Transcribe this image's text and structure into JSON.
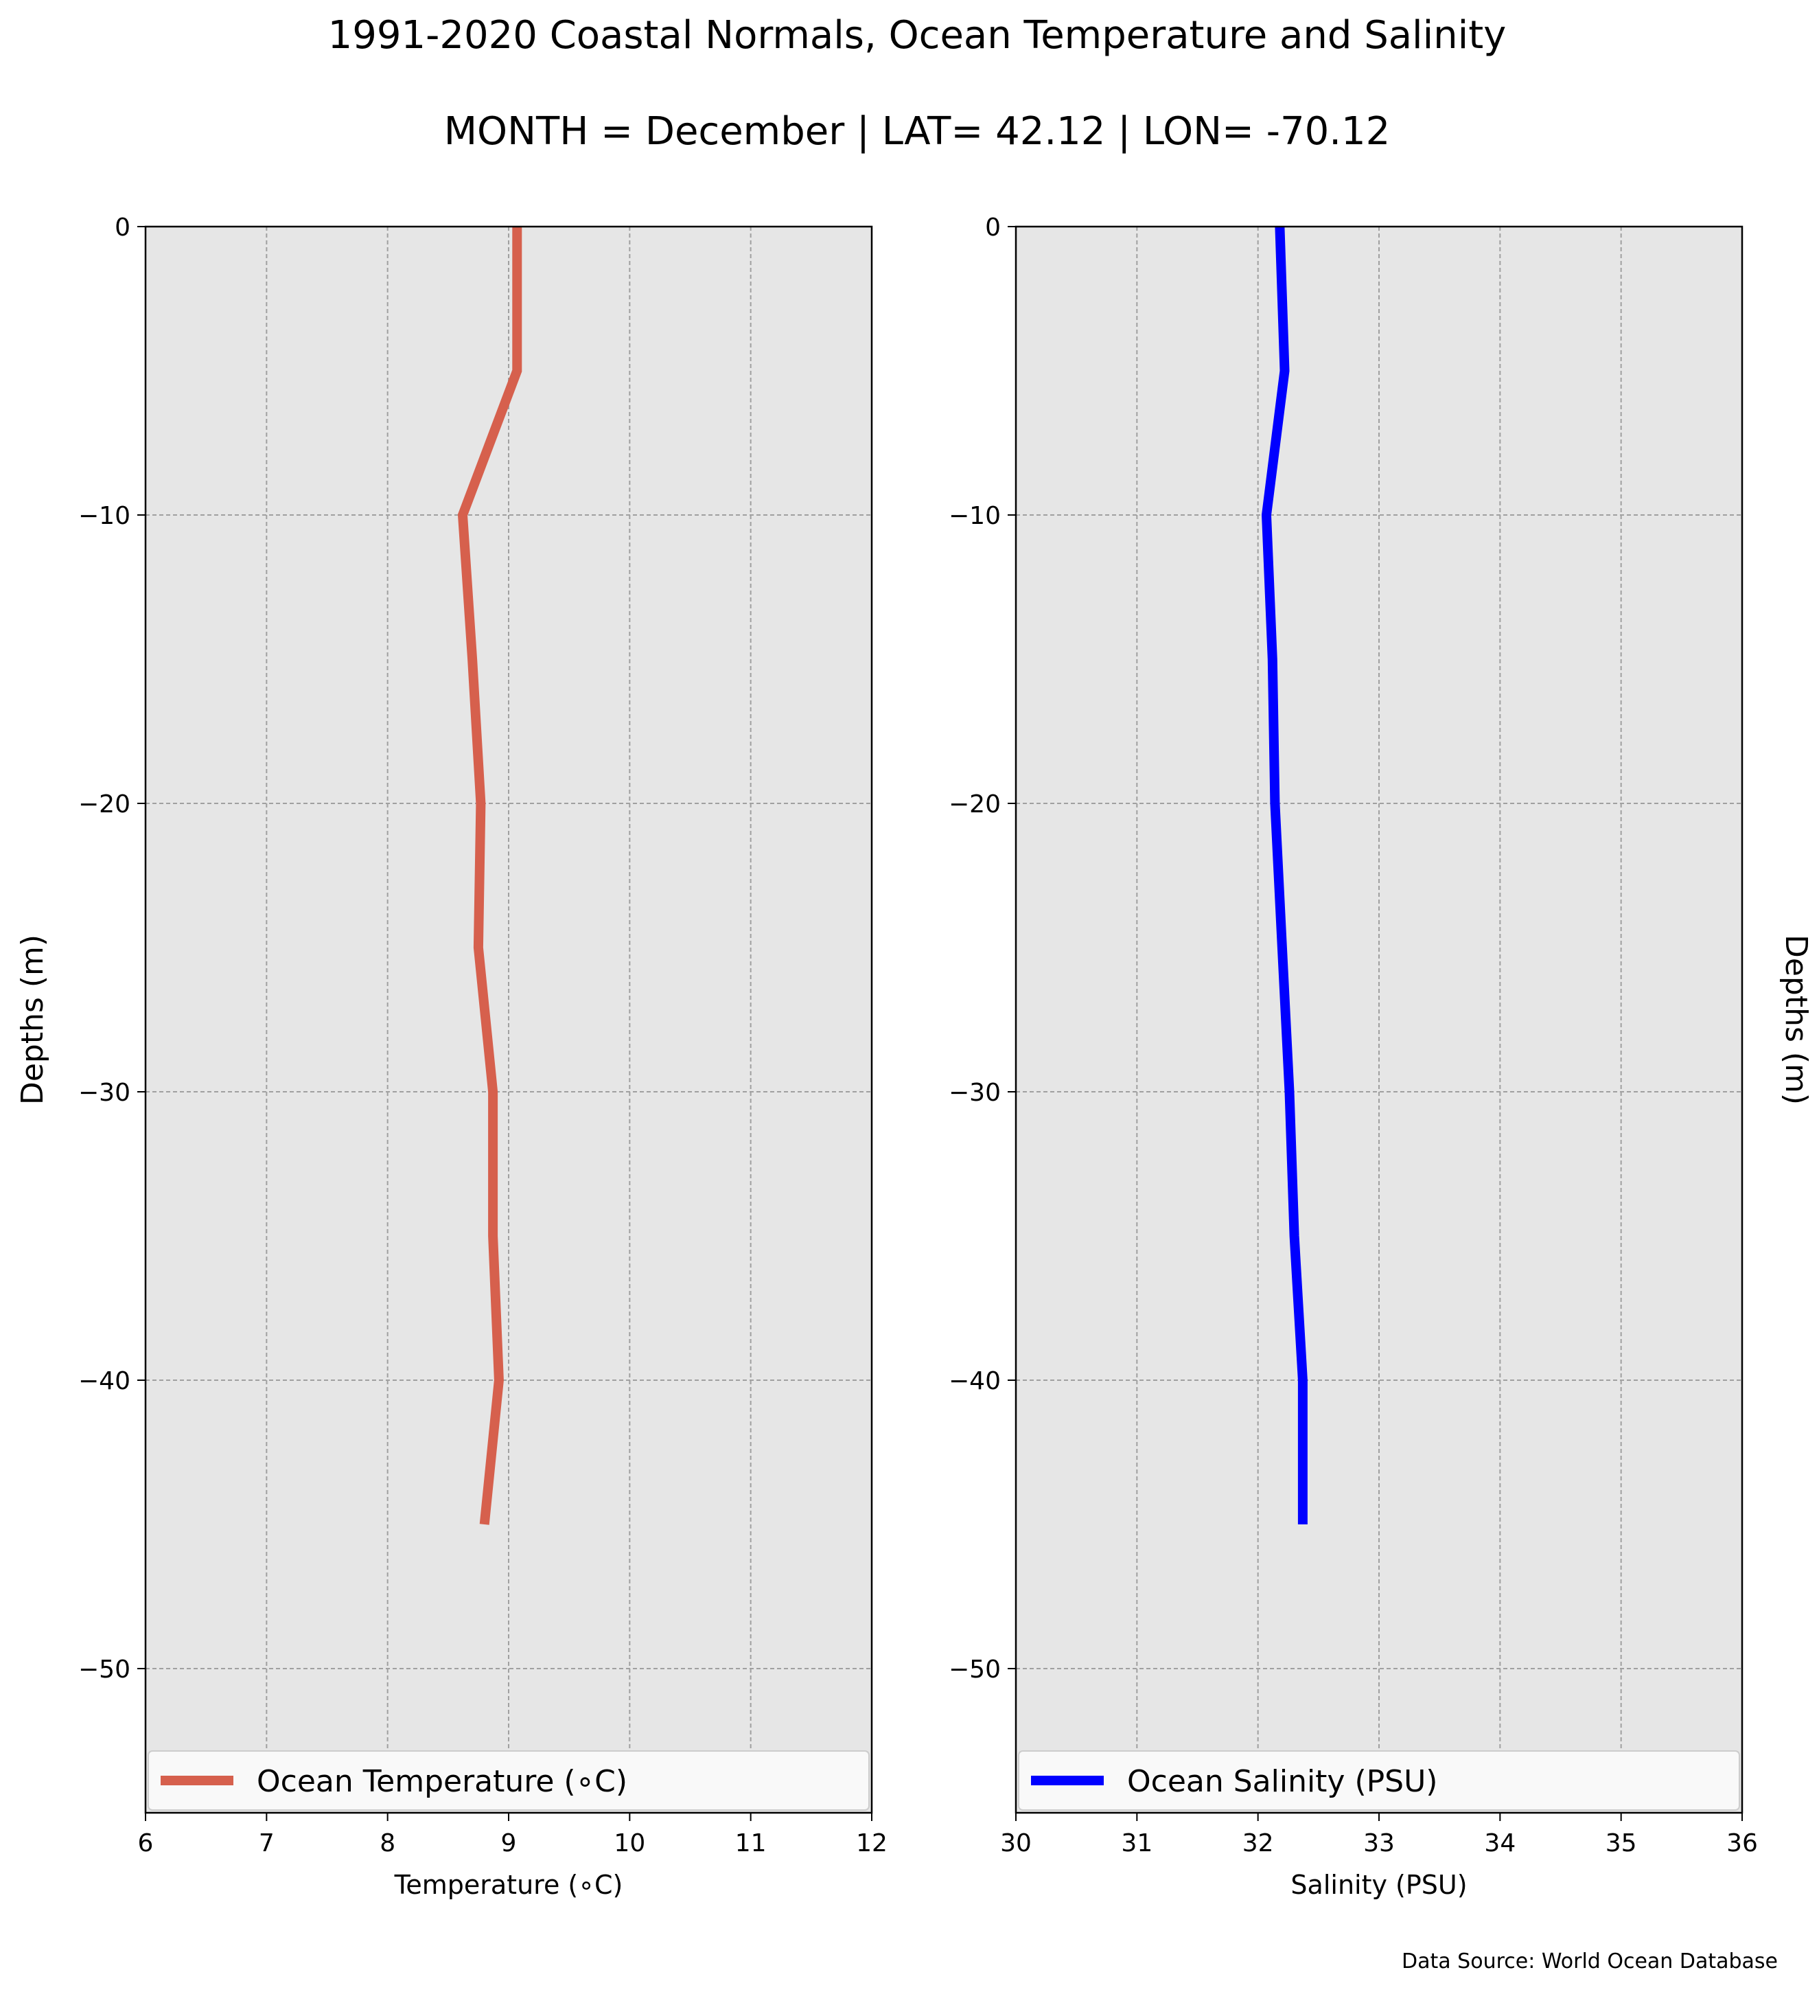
{
  "figure": {
    "title": "1991-2020 Coastal Normals, Ocean Temperature and Salinity",
    "subtitle": "MONTH = December | LAT= 42.12 | LON= -70.12",
    "footer": "Data Source: World Ocean Database"
  },
  "chart_data": [
    {
      "type": "line",
      "xlabel": "Temperature ($^\\circ$C)",
      "xlabel_display": "Temperature (∘C)",
      "ylabel": "Depths (m)",
      "ylabel_side": "left",
      "xlim": [
        6,
        12
      ],
      "ylim": [
        -55,
        0
      ],
      "xticks": [
        6,
        7,
        8,
        9,
        10,
        11,
        12
      ],
      "yticks": [
        0,
        -10,
        -20,
        -30,
        -40,
        -50
      ],
      "grid": true,
      "legend_position": "bottom",
      "series": [
        {
          "name": "Ocean Temperature (∘C)",
          "color": "#d6604d",
          "x": [
            9.07,
            9.07,
            8.62,
            8.7,
            8.77,
            8.75,
            8.87,
            8.87,
            8.92,
            8.8
          ],
          "y": [
            0,
            -5,
            -10,
            -15,
            -20,
            -25,
            -30,
            -35,
            -40,
            -45
          ]
        }
      ]
    },
    {
      "type": "line",
      "xlabel": "Salinity (PSU)",
      "ylabel": "Depths (m)",
      "ylabel_side": "right",
      "xlim": [
        30,
        36
      ],
      "ylim": [
        -55,
        0
      ],
      "xticks": [
        30,
        31,
        32,
        33,
        34,
        35,
        36
      ],
      "yticks": [
        0,
        -10,
        -20,
        -30,
        -40,
        -50
      ],
      "grid": true,
      "legend_position": "bottom",
      "series": [
        {
          "name": "Ocean Salinity (PSU)",
          "color": "#0000ff",
          "x": [
            32.18,
            32.22,
            32.07,
            32.12,
            32.14,
            32.2,
            32.26,
            32.3,
            32.37,
            32.37
          ],
          "y": [
            0,
            -5,
            -10,
            -15,
            -20,
            -25,
            -30,
            -35,
            -40,
            -45
          ]
        }
      ]
    }
  ]
}
